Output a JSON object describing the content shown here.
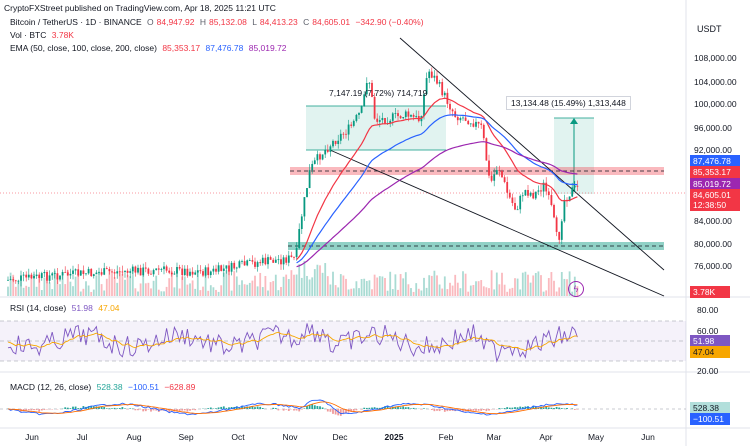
{
  "header": {
    "published_by": "CryptoFXStreet published on TradingView.com, Apr 18, 2025 11:21 UTC"
  },
  "main_legend": {
    "symbol": "Bitcoin / TetherUS · 1D · BINANCE",
    "o_label": "O",
    "o": "84,947.92",
    "h_label": "H",
    "h": "85,132.08",
    "l_label": "L",
    "l": "84,413.23",
    "c_label": "C",
    "c": "84,605.01",
    "chg": "−342.90 (−0.40%)"
  },
  "vol_legend": {
    "label": "Vol · BTC",
    "value": "3.78K"
  },
  "ema_legend": {
    "label": "EMA (50, close, 100, close, 200, close)",
    "ema50": "85,353.17",
    "ema100": "87,476.78",
    "ema200": "85,019.72"
  },
  "currency": "USDT",
  "price_axis": [
    "108,000.00",
    "104,000.00",
    "100,000.00",
    "96,000.00",
    "92,000.00",
    "88,000.00",
    "84,000.00",
    "80,000.00",
    "76,000.00",
    "72,000.00"
  ],
  "price_tags": {
    "ema100": "87,476.78",
    "ema50": "85,353.17",
    "ema200": "85,019.72",
    "last": "84,605.01",
    "countdown": "12:38:50",
    "volume": "3.78K"
  },
  "annotations": {
    "left_range": "7,147.19 (7.72%) 714,719",
    "right_range": "13,134.48 (15.49%) 1,313,448"
  },
  "rsi": {
    "label": "RSI (14, close)",
    "value": "51.98",
    "ma": "47.04",
    "axis": [
      "80.00",
      "60.00",
      "20.00"
    ],
    "tag_value": "51.98",
    "tag_ma": "47.04"
  },
  "macd": {
    "label": "MACD (12, 26, close)",
    "hist": "528.38",
    "macd": "−100.51",
    "signal": "−628.89",
    "tag_hist": "528.38",
    "tag_macd": "−100.51"
  },
  "time_axis": [
    "Jun",
    "Jul",
    "Aug",
    "Sep",
    "Oct",
    "Nov",
    "Dec",
    "2025",
    "Feb",
    "Mar",
    "Apr",
    "May",
    "Jun"
  ],
  "colors": {
    "up": "#089981",
    "down": "#f23645",
    "ema50": "#f23645",
    "ema100": "#2962ff",
    "ema200": "#9c27b0",
    "rsi": "#7e57c2",
    "rsi_ma": "#f7a600",
    "macd": "#2962ff",
    "signal": "#ff6d00"
  },
  "icons": {
    "tradingview_logo": "lightning-icon"
  }
}
